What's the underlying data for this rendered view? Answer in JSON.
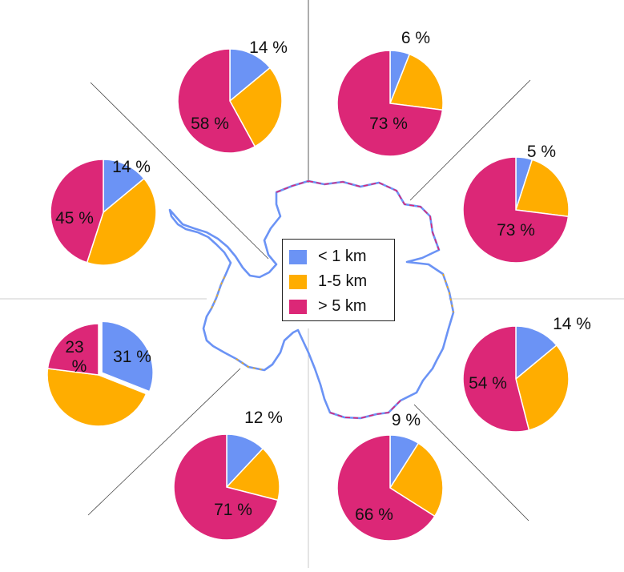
{
  "chart_data": {
    "type": "pie",
    "categories": [
      "< 1 km",
      "1-5 km",
      "> 5 km"
    ],
    "colors": {
      "< 1 km": "#6b93f5",
      "1-5 km": "#ffad00",
      "> 5 km": "#dc2777"
    },
    "legend_position": "center",
    "pies": [
      {
        "sector": "north-west",
        "values": [
          14,
          28,
          58
        ],
        "labels": {
          "< 1 km": "14 %",
          "> 5 km": "58 %"
        }
      },
      {
        "sector": "north-east",
        "values": [
          6,
          21,
          73
        ],
        "labels": {
          "< 1 km": "6 %",
          "> 5 km": "73 %"
        }
      },
      {
        "sector": "east-north-east",
        "values": [
          5,
          22,
          73
        ],
        "labels": {
          "< 1 km": "5 %",
          "> 5 km": "73 %"
        }
      },
      {
        "sector": "west-north-west",
        "values": [
          14,
          41,
          45
        ],
        "labels": {
          "< 1 km": "14 %",
          "> 5 km": "45 %"
        }
      },
      {
        "sector": "west-south-west",
        "values": [
          31,
          46,
          23
        ],
        "labels": {
          "< 1 km": "31 %",
          "> 5 km": "23 %"
        }
      },
      {
        "sector": "east-south-east",
        "values": [
          14,
          32,
          54
        ],
        "labels": {
          "< 1 km": "14 %",
          "> 5 km": "54 %"
        }
      },
      {
        "sector": "south-west",
        "values": [
          12,
          17,
          71
        ],
        "labels": {
          "< 1 km": "12 %",
          "> 5 km": "71 %"
        }
      },
      {
        "sector": "south-east",
        "values": [
          9,
          25,
          66
        ],
        "labels": {
          "< 1 km": "9 %",
          "> 5 km": "66 %"
        }
      }
    ]
  },
  "legend": {
    "items": [
      {
        "label": "< 1 km",
        "color": "#6b93f5"
      },
      {
        "label": "1-5 km",
        "color": "#ffad00"
      },
      {
        "label": "> 5 km",
        "color": "#dc2777"
      }
    ]
  }
}
